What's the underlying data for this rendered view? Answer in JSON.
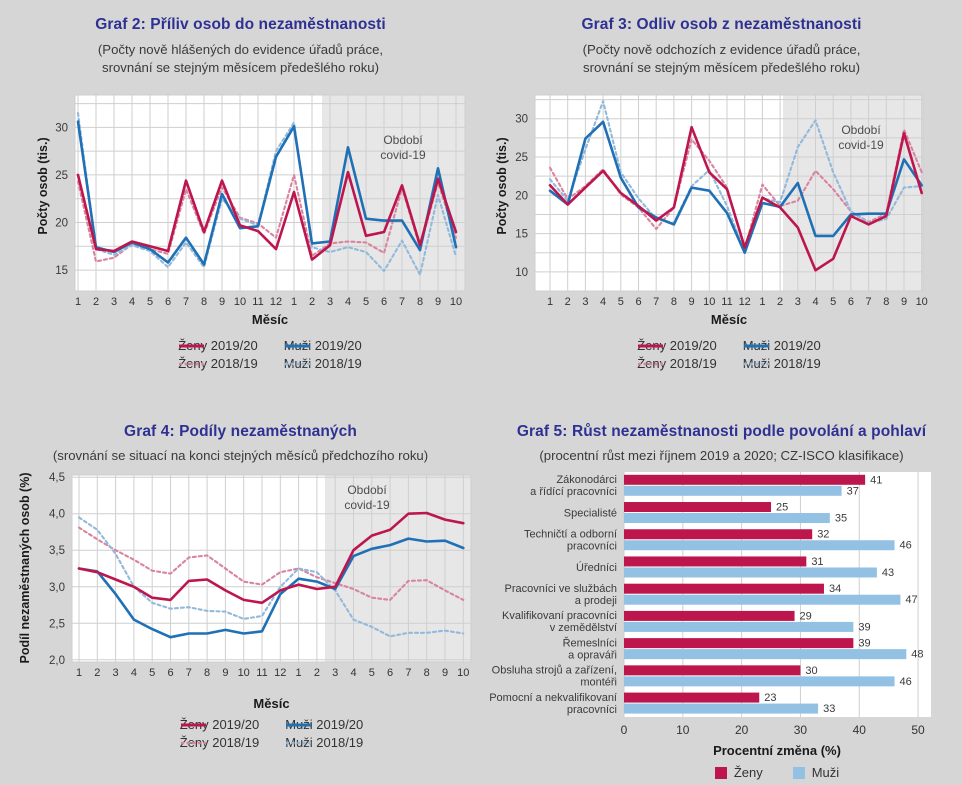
{
  "colors": {
    "title_blue": "#2e3192",
    "zeny_solid": "#bd164d",
    "muzi_solid": "#1f70b5",
    "zeny_dashed": "#d9849f",
    "muzi_dashed": "#92b9dc",
    "bar_zeny": "#bd164d",
    "bar_muzi": "#93c1e3",
    "page_bg": "#d6d6d6",
    "plot_bg": "#ffffff",
    "covid_shade": "#e7e7e7",
    "grid": "#cfcfcf",
    "tick_text": "#3a3a3a",
    "annot_text": "#4d4d4d"
  },
  "chart_data": [
    {
      "id": "graf2",
      "type": "line",
      "title": "Graf 2: Příliv osob do nezaměstnanosti",
      "subtitle_lines": [
        "(Počty nově hlášených do evidence úřadů práce,",
        "srovnání se stejným měsícem předešlého roku)"
      ],
      "xlabel": "Měsíc",
      "ylabel": "Počty osob (tis.)",
      "x_categories": [
        "1",
        "2",
        "3",
        "4",
        "5",
        "6",
        "7",
        "8",
        "9",
        "10",
        "11",
        "12",
        "1",
        "2",
        "3",
        "4",
        "5",
        "6",
        "7",
        "8",
        "9",
        "10"
      ],
      "yticks": [
        15,
        20,
        25,
        30
      ],
      "ylim": [
        12.8,
        33.4
      ],
      "grid_step": 2.5,
      "covid": {
        "label_lines": [
          "Období",
          "covid-19"
        ],
        "starts_after_index": 13
      },
      "series": [
        {
          "name": "Ženy 2019/20",
          "color": "zeny_solid",
          "dash": false,
          "values": [
            25.0,
            17.2,
            17.0,
            18.0,
            17.5,
            17.0,
            24.4,
            19.0,
            24.4,
            19.7,
            19.1,
            17.2,
            23.2,
            16.1,
            17.6,
            25.3,
            18.6,
            19.0,
            23.9,
            17.6,
            24.6,
            19.0
          ]
        },
        {
          "name": "Muži 2019/20",
          "color": "muzi_solid",
          "dash": false,
          "values": [
            30.6,
            17.4,
            16.9,
            17.9,
            17.2,
            15.8,
            18.4,
            15.6,
            23.0,
            19.4,
            19.6,
            26.9,
            30.1,
            17.8,
            18.0,
            27.9,
            20.4,
            20.2,
            20.2,
            17.1,
            25.7,
            17.4
          ]
        },
        {
          "name": "Ženy 2018/19",
          "color": "zeny_dashed",
          "dash": true,
          "values": [
            24.3,
            15.9,
            16.3,
            17.7,
            17.2,
            16.7,
            23.5,
            18.8,
            23.7,
            20.5,
            19.9,
            18.4,
            25.0,
            16.5,
            17.8,
            18.0,
            17.9,
            16.8,
            23.6,
            17.4,
            24.2,
            18.4
          ]
        },
        {
          "name": "Muži 2018/19",
          "color": "muzi_dashed",
          "dash": true,
          "values": [
            31.5,
            17.2,
            16.6,
            17.6,
            17.0,
            15.3,
            17.9,
            15.3,
            22.5,
            20.4,
            19.7,
            27.5,
            30.5,
            17.4,
            16.9,
            17.4,
            16.9,
            14.9,
            18.1,
            14.5,
            22.9,
            16.4
          ]
        }
      ]
    },
    {
      "id": "graf3",
      "type": "line",
      "title": "Graf 3: Odliv osob z nezaměstnanosti",
      "subtitle_lines": [
        "(Počty nově odchozích z evidence úřadů práce,",
        "srovnání se stejným měsícem předešlého roku)"
      ],
      "xlabel": "Měsíc",
      "ylabel": "Počty osob (tis.)",
      "x_categories": [
        "1",
        "2",
        "3",
        "4",
        "5",
        "6",
        "7",
        "8",
        "9",
        "10",
        "11",
        "12",
        "1",
        "2",
        "3",
        "4",
        "5",
        "6",
        "7",
        "8",
        "9",
        "10"
      ],
      "yticks": [
        10,
        15,
        20,
        25,
        30
      ],
      "ylim": [
        7.5,
        33.1
      ],
      "grid_step": 2.5,
      "covid": {
        "label_lines": [
          "Období",
          "covid-19"
        ],
        "starts_after_index": 13
      },
      "series": [
        {
          "name": "Ženy 2019/20",
          "color": "zeny_solid",
          "dash": false,
          "values": [
            21.3,
            18.8,
            21.0,
            23.2,
            20.3,
            18.6,
            16.7,
            18.4,
            28.9,
            23.0,
            20.8,
            13.2,
            19.7,
            18.4,
            15.8,
            10.2,
            11.7,
            17.3,
            16.2,
            17.3,
            28.1,
            20.3
          ]
        },
        {
          "name": "Muži 2019/20",
          "color": "muzi_solid",
          "dash": false,
          "values": [
            20.6,
            18.8,
            27.4,
            29.6,
            22.3,
            18.4,
            17.1,
            16.2,
            21.0,
            20.6,
            17.7,
            12.5,
            19.0,
            18.5,
            21.6,
            14.7,
            14.7,
            17.5,
            17.6,
            17.6,
            24.7,
            21.3
          ]
        },
        {
          "name": "Ženy 2018/19",
          "color": "zeny_dashed",
          "dash": true,
          "values": [
            23.6,
            19.5,
            21.2,
            23.4,
            20.1,
            18.4,
            15.6,
            18.4,
            27.3,
            24.5,
            21.0,
            13.0,
            21.4,
            18.6,
            19.3,
            23.2,
            20.8,
            17.9,
            16.5,
            17.6,
            28.6,
            23.0
          ]
        },
        {
          "name": "Muži 2018/19",
          "color": "muzi_dashed",
          "dash": true,
          "values": [
            22.1,
            19.3,
            26.0,
            32.3,
            23.0,
            19.6,
            16.9,
            16.4,
            21.2,
            23.3,
            18.6,
            12.6,
            19.6,
            19.1,
            26.3,
            29.8,
            23.0,
            17.9,
            16.4,
            16.9,
            21.0,
            21.2
          ]
        }
      ]
    },
    {
      "id": "graf4",
      "type": "line",
      "title": "Graf 4: Podíly nezaměstnaných",
      "subtitle_lines": [
        "(srovnání se situací na konci stejných měsíců předchozího roku)"
      ],
      "xlabel": "Měsíc",
      "ylabel": "Podíl nezaměstnaných osob (%)",
      "x_categories": [
        "1",
        "2",
        "3",
        "4",
        "5",
        "6",
        "7",
        "8",
        "9",
        "10",
        "11",
        "12",
        "1",
        "2",
        "3",
        "4",
        "5",
        "6",
        "7",
        "8",
        "9",
        "10"
      ],
      "yticks": [
        2.0,
        2.5,
        3.0,
        3.5,
        4.0,
        4.5
      ],
      "ytick_labels": [
        "2,0",
        "2,5",
        "3,0",
        "3,5",
        "4,0",
        "4,5"
      ],
      "ylim": [
        1.97,
        4.53
      ],
      "grid_step": 0.5,
      "covid": {
        "label_lines": [
          "Období",
          "covid-19"
        ],
        "starts_after_index": 13
      },
      "series": [
        {
          "name": "Ženy 2019/20",
          "color": "zeny_solid",
          "dash": false,
          "values": [
            3.25,
            3.2,
            3.1,
            3.0,
            2.85,
            2.82,
            3.08,
            3.1,
            2.95,
            2.82,
            2.78,
            2.95,
            3.03,
            2.97,
            3.0,
            3.5,
            3.7,
            3.78,
            4.0,
            4.01,
            3.92,
            3.87
          ]
        },
        {
          "name": "Muži 2019/20",
          "color": "muzi_solid",
          "dash": false,
          "values": [
            3.25,
            3.21,
            2.9,
            2.55,
            2.42,
            2.31,
            2.36,
            2.36,
            2.41,
            2.36,
            2.39,
            2.9,
            3.11,
            3.07,
            2.97,
            3.42,
            3.52,
            3.57,
            3.66,
            3.62,
            3.63,
            3.53
          ]
        },
        {
          "name": "Ženy 2018/19",
          "color": "zeny_dashed",
          "dash": true,
          "values": [
            3.81,
            3.65,
            3.5,
            3.37,
            3.22,
            3.18,
            3.4,
            3.43,
            3.25,
            3.07,
            3.03,
            3.2,
            3.25,
            3.13,
            3.05,
            2.97,
            2.85,
            2.82,
            3.08,
            3.09,
            2.95,
            2.82
          ]
        },
        {
          "name": "Muži 2018/19",
          "color": "muzi_dashed",
          "dash": true,
          "values": [
            3.95,
            3.78,
            3.45,
            3.0,
            2.78,
            2.7,
            2.72,
            2.67,
            2.66,
            2.56,
            2.6,
            3.0,
            3.25,
            3.2,
            2.95,
            2.55,
            2.45,
            2.32,
            2.37,
            2.37,
            2.4,
            2.36
          ]
        }
      ]
    },
    {
      "id": "graf5",
      "type": "bar",
      "title": "Graf 5: Růst nezaměstnanosti podle povolání a pohlaví",
      "subtitle_lines": [
        "(procentní růst mezi říjnem 2019 a 2020; CZ-ISCO klasifikace)"
      ],
      "xlabel": "Procentní změna (%)",
      "categories": [
        [
          "Zákonodárci",
          "a řídící pracovníci"
        ],
        [
          "Specialisté"
        ],
        [
          "Techničtí a odborní",
          "pracovníci"
        ],
        [
          "Úředníci"
        ],
        [
          "Pracovníci ve službách",
          "a prodeji"
        ],
        [
          "Kvalifikovaní pracovníci",
          "v zemědělství"
        ],
        [
          "Řemeslníci",
          "a opraváři"
        ],
        [
          "Obsluha strojů a zařízení,",
          "montéři"
        ],
        [
          "Pomocní a nekvalifikovaní",
          "pracovníci"
        ]
      ],
      "xticks": [
        0,
        10,
        20,
        30,
        40,
        50
      ],
      "xlim": [
        0,
        52.2
      ],
      "series": [
        {
          "name": "Ženy",
          "color": "bar_zeny",
          "values": [
            41,
            25,
            32,
            31,
            34,
            29,
            39,
            30,
            23
          ]
        },
        {
          "name": "Muži",
          "color": "bar_muzi",
          "values": [
            37,
            35,
            46,
            43,
            47,
            39,
            48,
            46,
            33
          ]
        }
      ]
    }
  ]
}
